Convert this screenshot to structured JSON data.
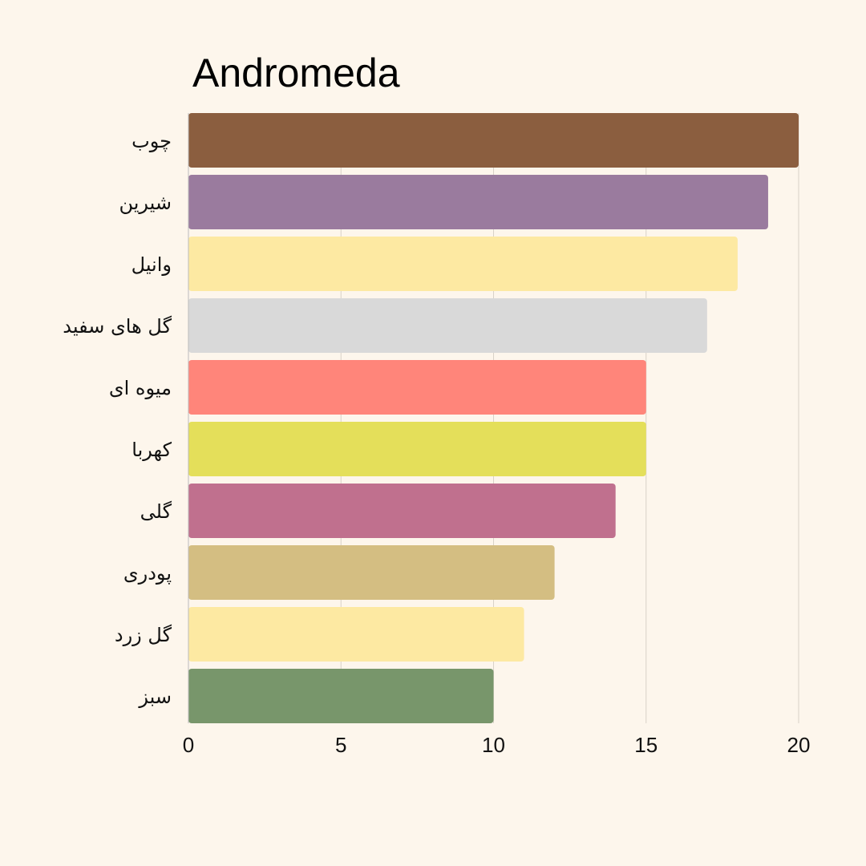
{
  "chart_data": {
    "type": "bar",
    "orientation": "horizontal",
    "title": "Andromeda",
    "xlabel": "",
    "ylabel": "",
    "xlim": [
      0,
      20
    ],
    "xticks": [
      0,
      5,
      10,
      15,
      20
    ],
    "grid": true,
    "categories": [
      "چوب",
      "شیرین",
      "وانیل",
      "گل های سفید",
      "میوه ای",
      "کهربا",
      "گلی",
      "پودری",
      "گل زرد",
      "سبز"
    ],
    "values": [
      20,
      19,
      18,
      17,
      15,
      15,
      14,
      12,
      11,
      10
    ],
    "colors": [
      "#8b5e3f",
      "#9a7b9e",
      "#fde9a2",
      "#d9d9d9",
      "#ff857a",
      "#e4df5a",
      "#c0708e",
      "#d4be82",
      "#fde9a2",
      "#78966b"
    ]
  }
}
